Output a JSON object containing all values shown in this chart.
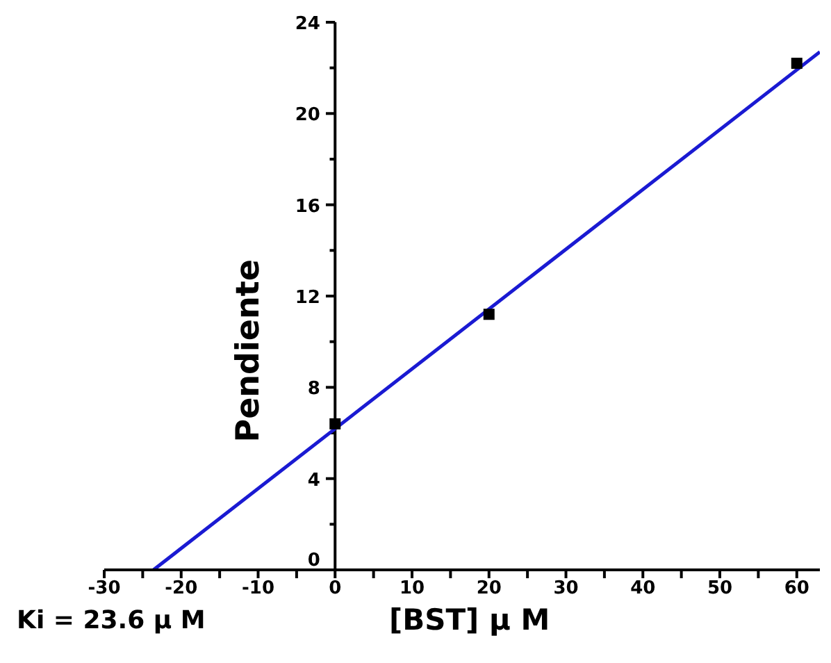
{
  "chart_data": {
    "type": "scatter",
    "xlabel": "[BST] μ M",
    "ylabel": "Pendiente",
    "annotations": [
      "Ki = 23.6 μ M"
    ],
    "xlim": [
      -30,
      63
    ],
    "ylim": [
      0,
      24
    ],
    "xticks": [
      -30,
      {
        "value": -25,
        "label": null
      },
      -20,
      {
        "value": -15,
        "label": null
      },
      -10,
      {
        "value": -5,
        "label": null
      },
      0,
      {
        "value": 5,
        "label": null
      },
      10,
      {
        "value": 15,
        "label": null
      },
      20,
      {
        "value": 25,
        "label": null
      },
      30,
      {
        "value": 35,
        "label": null
      },
      40,
      {
        "value": 45,
        "label": null
      },
      50,
      {
        "value": 55,
        "label": null
      },
      60
    ],
    "yticks": [
      0,
      {
        "value": 2,
        "label": null
      },
      4,
      {
        "value": 6,
        "label": null
      },
      8,
      {
        "value": 10,
        "label": null
      },
      12,
      {
        "value": 14,
        "label": null
      },
      16,
      {
        "value": 18,
        "label": null
      },
      20,
      {
        "value": 22,
        "label": null
      },
      24
    ],
    "series": [
      {
        "color": "#000000",
        "marker": "square",
        "x": [
          0,
          20,
          60
        ],
        "values": [
          6.4,
          11.2,
          22.2
        ]
      },
      {
        "type": "line",
        "color": "#1a1ad2",
        "marker": "none",
        "line_style": "solid",
        "x": [
          -23.6,
          63
        ],
        "values": [
          0,
          22.7
        ]
      }
    ]
  }
}
